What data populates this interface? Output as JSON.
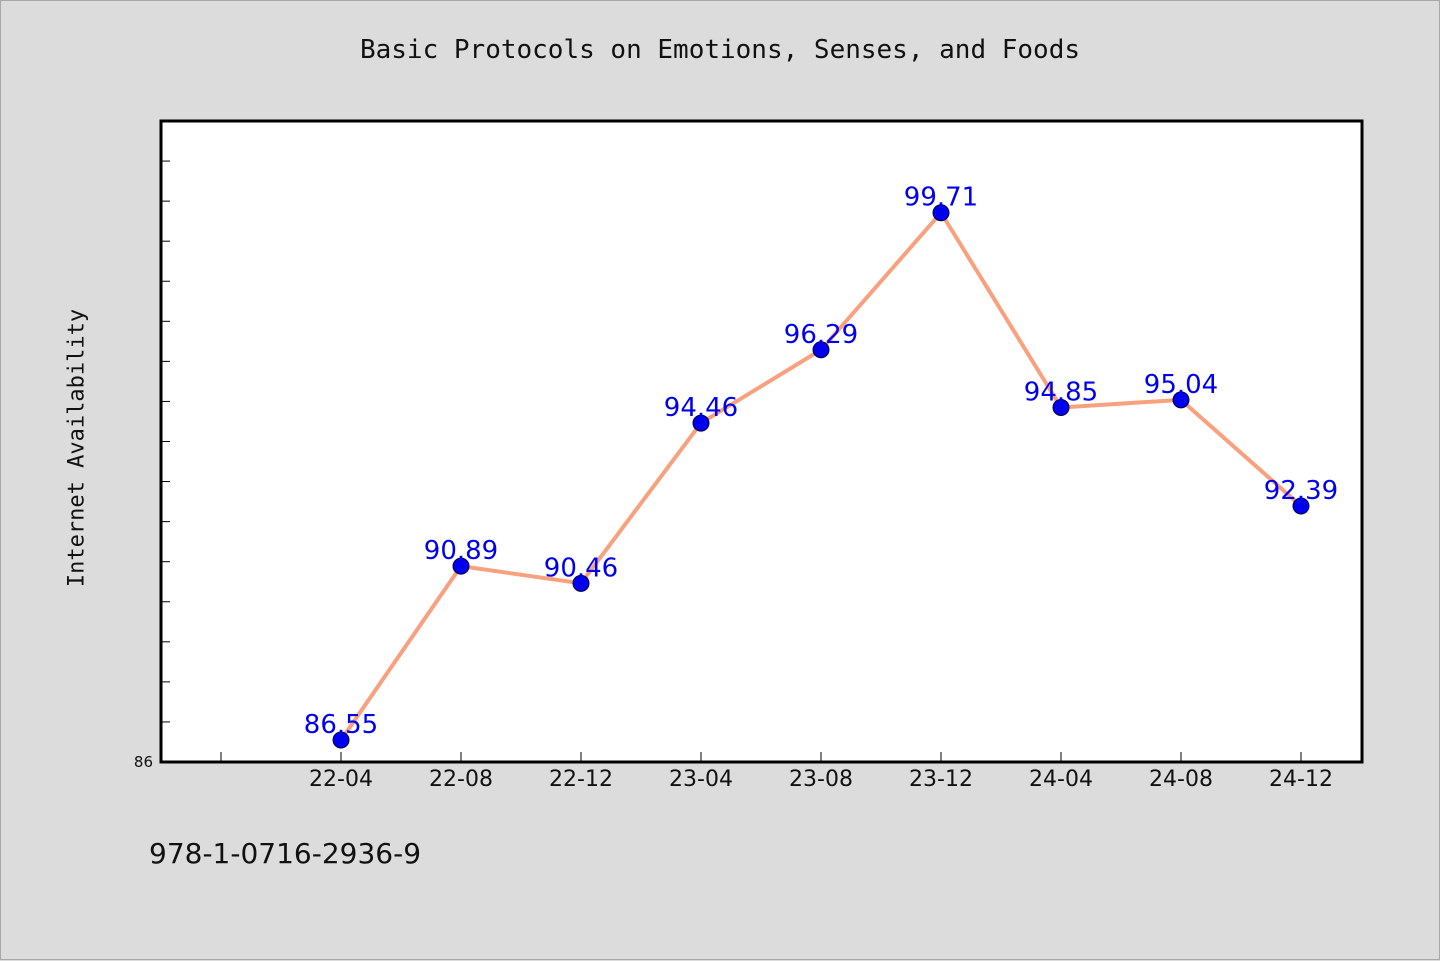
{
  "chart_data": {
    "type": "line",
    "title": "Basic Protocols on Emotions, Senses, and Foods",
    "xlabel": "",
    "ylabel": "Internet Availability",
    "categories": [
      "22-04",
      "22-08",
      "22-12",
      "23-04",
      "23-08",
      "23-12",
      "24-04",
      "24-08",
      "24-12"
    ],
    "series": [
      {
        "values": [
          86.55,
          90.89,
          90.46,
          94.46,
          96.29,
          99.71,
          94.85,
          95.04,
          92.39
        ],
        "line_color": "#f9a07e",
        "marker_color": "#0000ee",
        "label_color": "#0000ee"
      }
    ],
    "y_tick_labels": [
      "86"
    ],
    "ylim": [
      86,
      102
    ],
    "grid": false,
    "legend": "none"
  },
  "footer": {
    "isbn": "978-1-0716-2936-9"
  }
}
